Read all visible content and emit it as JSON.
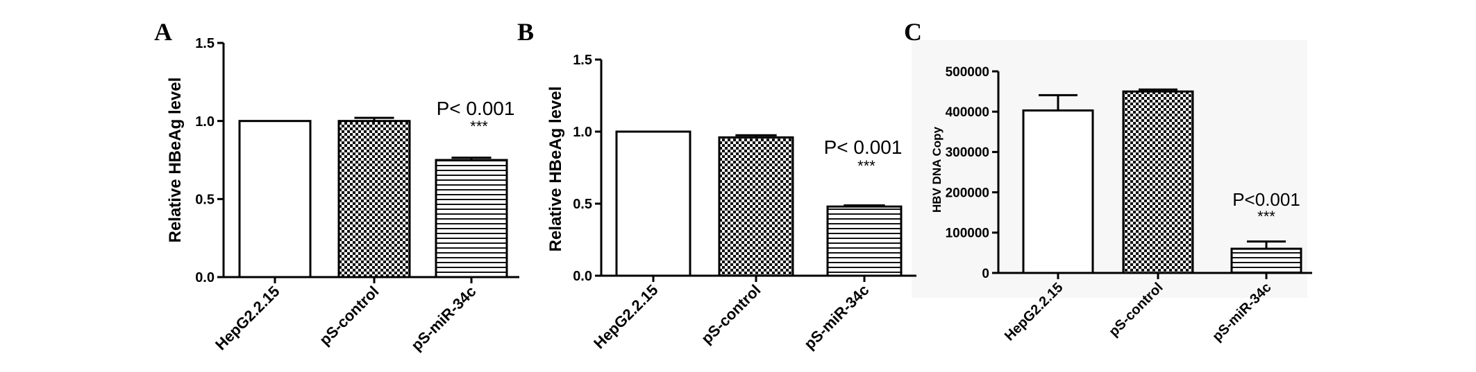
{
  "chart_data": [
    {
      "type": "bar",
      "panel_label": "A",
      "categories": [
        "HepG2.2.15",
        "pS-control",
        "pS-miR-34c"
      ],
      "values": [
        1.0,
        1.0,
        0.75
      ],
      "errors": [
        0.0,
        0.02,
        0.015
      ],
      "patterns": [
        "plain",
        "checker",
        "hstripe"
      ],
      "ylabel": "Relative HBeAg level",
      "ylim": [
        0,
        1.5
      ],
      "yticks": [
        "0.0",
        "0.5",
        "1.0",
        "1.5"
      ],
      "annotation": {
        "pvalue": "P< 0.001",
        "stars": "***",
        "category": "pS-miR-34c"
      },
      "grid": false
    },
    {
      "type": "bar",
      "panel_label": "B",
      "categories": [
        "HepG2.2.15",
        "pS-control",
        "pS-miR-34c"
      ],
      "values": [
        1.0,
        0.96,
        0.48
      ],
      "errors": [
        0.0,
        0.015,
        0.008
      ],
      "patterns": [
        "plain",
        "checker",
        "hstripe"
      ],
      "ylabel": "Relative HBeAg level",
      "ylim": [
        0,
        1.5
      ],
      "yticks": [
        "0.0",
        "0.5",
        "1.0",
        "1.5"
      ],
      "annotation": {
        "pvalue": "P< 0.001",
        "stars": "***",
        "category": "pS-miR-34c"
      },
      "grid": false
    },
    {
      "type": "bar",
      "panel_label": "C",
      "categories": [
        "HepG2.2.15",
        "pS-control",
        "pS-miR-34c"
      ],
      "values": [
        403000,
        450000,
        60000
      ],
      "errors": [
        38000,
        5000,
        18000
      ],
      "patterns": [
        "plain",
        "checker",
        "hstripe"
      ],
      "ylabel": "HBV DNA Copy",
      "ylim": [
        0,
        500000
      ],
      "yticks": [
        "0",
        "100000",
        "200000",
        "300000",
        "400000",
        "500000"
      ],
      "annotation": {
        "pvalue": "P<0.001",
        "stars": "***",
        "category": "pS-miR-34c"
      },
      "grid": false
    }
  ]
}
